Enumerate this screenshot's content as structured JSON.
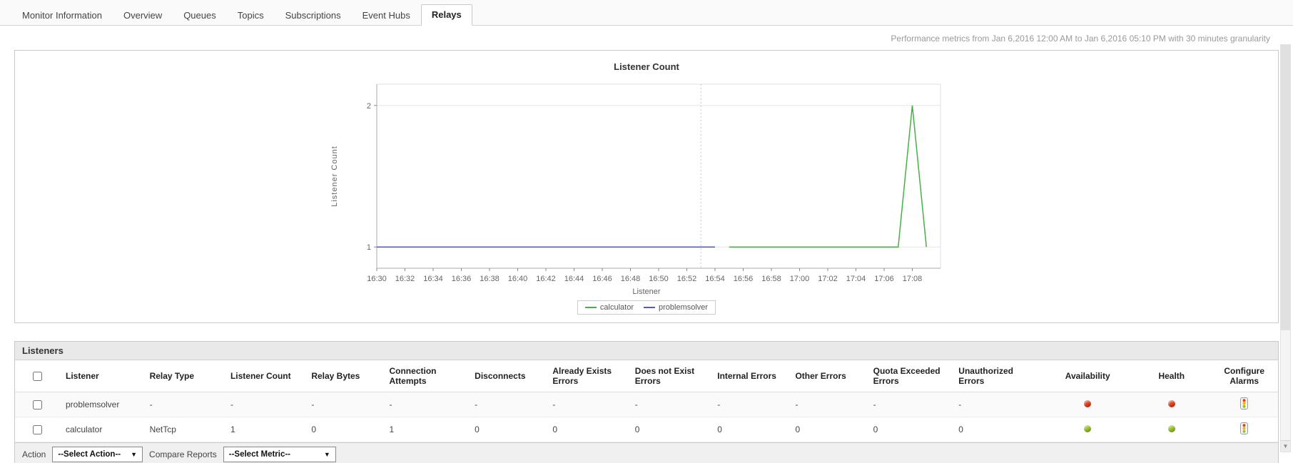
{
  "tabs": {
    "items": [
      {
        "label": "Monitor Information",
        "active": false
      },
      {
        "label": "Overview",
        "active": false
      },
      {
        "label": "Queues",
        "active": false
      },
      {
        "label": "Topics",
        "active": false
      },
      {
        "label": "Subscriptions",
        "active": false
      },
      {
        "label": "Event Hubs",
        "active": false
      },
      {
        "label": "Relays",
        "active": true
      }
    ]
  },
  "header": {
    "metrics_text": "Performance metrics from Jan 6,2016 12:00 AM to Jan 6,2016 05:10 PM with 30 minutes granularity"
  },
  "chart_data": {
    "type": "line",
    "title": "Listener Count",
    "xlabel": "Listener",
    "ylabel": "Listener Count",
    "x_ticks": [
      "16:30",
      "16:32",
      "16:34",
      "16:36",
      "16:38",
      "16:40",
      "16:42",
      "16:44",
      "16:46",
      "16:48",
      "16:50",
      "16:52",
      "16:54",
      "16:56",
      "16:58",
      "17:00",
      "17:02",
      "17:04",
      "17:06",
      "17:08"
    ],
    "y_ticks": [
      1,
      2
    ],
    "ylim": [
      0.85,
      2.15
    ],
    "x_minutes_range": [
      0,
      40
    ],
    "dotted_vline_at": "16:53",
    "legend_position": "bottom",
    "grid": true,
    "series": [
      {
        "name": "calculator",
        "color": "#45b145",
        "points": [
          {
            "t": "16:55",
            "v": 1
          },
          {
            "t": "17:07",
            "v": 1
          },
          {
            "t": "17:08",
            "v": 2
          },
          {
            "t": "17:09",
            "v": 1
          }
        ]
      },
      {
        "name": "problemsolver",
        "color": "#5555cc",
        "points": [
          {
            "t": "16:30",
            "v": 1
          },
          {
            "t": "16:54",
            "v": 1
          }
        ]
      }
    ]
  },
  "listeners_table": {
    "section_title": "Listeners",
    "columns": [
      "Listener",
      "Relay Type",
      "Listener Count",
      "Relay Bytes",
      "Connection Attempts",
      "Disconnects",
      "Already Exists Errors",
      "Does not Exist Errors",
      "Internal Errors",
      "Other Errors",
      "Quota Exceeded Errors",
      "Unauthorized Errors",
      "Availability",
      "Health",
      "Configure Alarms"
    ],
    "rows": [
      {
        "cells": [
          "problemsolver",
          "-",
          "-",
          "-",
          "-",
          "-",
          "-",
          "-",
          "-",
          "-",
          "-",
          "-"
        ],
        "availability": "red",
        "health": "red"
      },
      {
        "cells": [
          "calculator",
          "NetTcp",
          "1",
          "0",
          "1",
          "0",
          "0",
          "0",
          "0",
          "0",
          "0",
          "0"
        ],
        "availability": "green",
        "health": "green"
      }
    ],
    "status_colors": {
      "red": "#e8401c",
      "green": "#9dc62d"
    }
  },
  "action_bar": {
    "action_label": "Action",
    "action_select_value": "--Select Action--",
    "compare_label": "Compare Reports",
    "compare_select_value": "--Select Metric--"
  }
}
